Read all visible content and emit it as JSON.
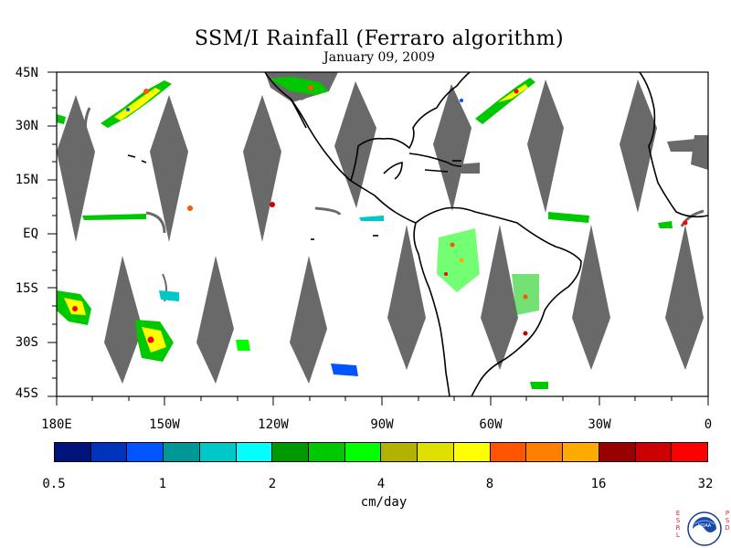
{
  "header": {
    "title": "SSM/I Rainfall (Ferraro algorithm)",
    "date": "January 09, 2009"
  },
  "map": {
    "lat_labels": [
      "45N",
      "30N",
      "15N",
      "EQ",
      "15S",
      "30S",
      "45S"
    ],
    "lon_labels": [
      "180E",
      "150W",
      "120W",
      "90W",
      "60W",
      "30W",
      "0"
    ],
    "no_data_color": "#696969",
    "coastline_color": "#000000"
  },
  "colorbar": {
    "tick_labels": [
      "0.5",
      "1",
      "2",
      "4",
      "8",
      "16",
      "32"
    ],
    "units": "cm/day",
    "colors": [
      "#00137a",
      "#0033bb",
      "#0055ff",
      "#009797",
      "#00c8c8",
      "#00ffff",
      "#009900",
      "#00c800",
      "#00ff00",
      "#b2b200",
      "#e0e000",
      "#ffff00",
      "#ff5500",
      "#ff8000",
      "#ffaa00",
      "#990000",
      "#cc0000",
      "#ff0000"
    ]
  },
  "logo": {
    "name": "NOAA",
    "left_letters": "ESRL",
    "right_letters": "PSD"
  }
}
